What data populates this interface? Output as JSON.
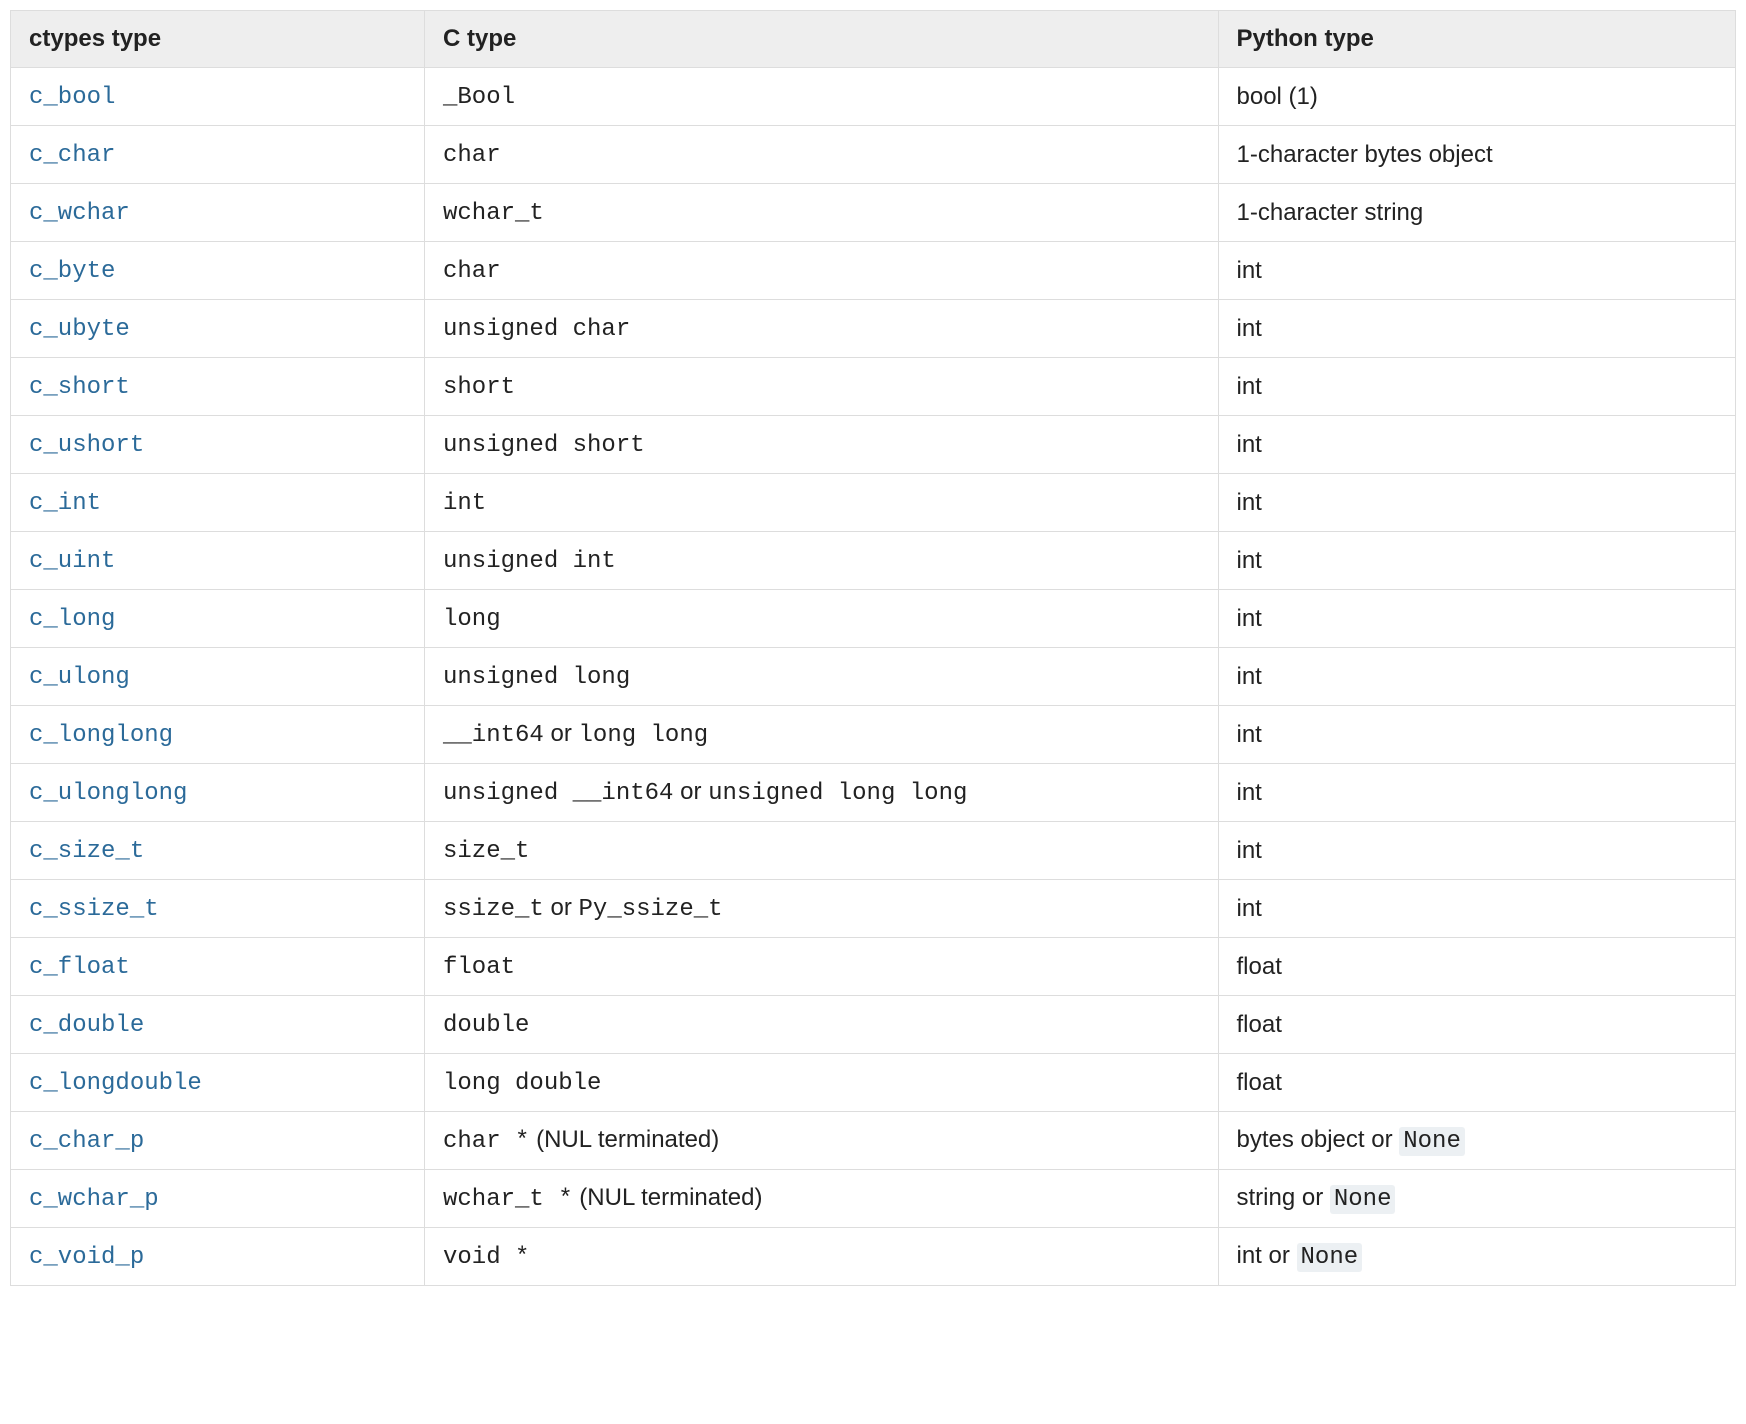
{
  "table": {
    "type": "table",
    "background_color": "#ffffff",
    "border_color": "#dddddd",
    "header_background": "#eeeeee",
    "link_color": "#2b6a99",
    "text_color": "#222222",
    "literal_background": "#ecf0f3",
    "body_font": "Lucida Grande, Lucida Sans Unicode, Geneva, Verdana, sans-serif",
    "mono_font": "Menlo, Monaco, Consolas, Courier New, monospace",
    "base_fontsize_pt": 18,
    "column_widths_pct": [
      24,
      46,
      30
    ],
    "columns": [
      "ctypes type",
      "C type",
      "Python type"
    ],
    "rows": [
      {
        "ctypes": "c_bool",
        "ctype": [
          {
            "t": "mono",
            "v": "_Bool"
          }
        ],
        "pytype": [
          {
            "t": "text",
            "v": "bool (1)"
          }
        ]
      },
      {
        "ctypes": "c_char",
        "ctype": [
          {
            "t": "mono",
            "v": "char"
          }
        ],
        "pytype": [
          {
            "t": "text",
            "v": "1-character bytes object"
          }
        ]
      },
      {
        "ctypes": "c_wchar",
        "ctype": [
          {
            "t": "mono",
            "v": "wchar_t"
          }
        ],
        "pytype": [
          {
            "t": "text",
            "v": "1-character string"
          }
        ]
      },
      {
        "ctypes": "c_byte",
        "ctype": [
          {
            "t": "mono",
            "v": "char"
          }
        ],
        "pytype": [
          {
            "t": "text",
            "v": "int"
          }
        ]
      },
      {
        "ctypes": "c_ubyte",
        "ctype": [
          {
            "t": "mono",
            "v": "unsigned char"
          }
        ],
        "pytype": [
          {
            "t": "text",
            "v": "int"
          }
        ]
      },
      {
        "ctypes": "c_short",
        "ctype": [
          {
            "t": "mono",
            "v": "short"
          }
        ],
        "pytype": [
          {
            "t": "text",
            "v": "int"
          }
        ]
      },
      {
        "ctypes": "c_ushort",
        "ctype": [
          {
            "t": "mono",
            "v": "unsigned short"
          }
        ],
        "pytype": [
          {
            "t": "text",
            "v": "int"
          }
        ]
      },
      {
        "ctypes": "c_int",
        "ctype": [
          {
            "t": "mono",
            "v": "int"
          }
        ],
        "pytype": [
          {
            "t": "text",
            "v": "int"
          }
        ]
      },
      {
        "ctypes": "c_uint",
        "ctype": [
          {
            "t": "mono",
            "v": "unsigned int"
          }
        ],
        "pytype": [
          {
            "t": "text",
            "v": "int"
          }
        ]
      },
      {
        "ctypes": "c_long",
        "ctype": [
          {
            "t": "mono",
            "v": "long"
          }
        ],
        "pytype": [
          {
            "t": "text",
            "v": "int"
          }
        ]
      },
      {
        "ctypes": "c_ulong",
        "ctype": [
          {
            "t": "mono",
            "v": "unsigned long"
          }
        ],
        "pytype": [
          {
            "t": "text",
            "v": "int"
          }
        ]
      },
      {
        "ctypes": "c_longlong",
        "ctype": [
          {
            "t": "mono",
            "v": "__int64"
          },
          {
            "t": "text",
            "v": " or "
          },
          {
            "t": "mono",
            "v": "long long"
          }
        ],
        "pytype": [
          {
            "t": "text",
            "v": "int"
          }
        ]
      },
      {
        "ctypes": "c_ulonglong",
        "ctype": [
          {
            "t": "mono",
            "v": "unsigned __int64"
          },
          {
            "t": "text",
            "v": " or "
          },
          {
            "t": "mono",
            "v": "unsigned long long"
          }
        ],
        "pytype": [
          {
            "t": "text",
            "v": "int"
          }
        ]
      },
      {
        "ctypes": "c_size_t",
        "ctype": [
          {
            "t": "mono",
            "v": "size_t"
          }
        ],
        "pytype": [
          {
            "t": "text",
            "v": "int"
          }
        ]
      },
      {
        "ctypes": "c_ssize_t",
        "ctype": [
          {
            "t": "mono",
            "v": "ssize_t"
          },
          {
            "t": "text",
            "v": " or "
          },
          {
            "t": "mono",
            "v": "Py_ssize_t"
          }
        ],
        "pytype": [
          {
            "t": "text",
            "v": "int"
          }
        ]
      },
      {
        "ctypes": "c_float",
        "ctype": [
          {
            "t": "mono",
            "v": "float"
          }
        ],
        "pytype": [
          {
            "t": "text",
            "v": "float"
          }
        ]
      },
      {
        "ctypes": "c_double",
        "ctype": [
          {
            "t": "mono",
            "v": "double"
          }
        ],
        "pytype": [
          {
            "t": "text",
            "v": "float"
          }
        ]
      },
      {
        "ctypes": "c_longdouble",
        "ctype": [
          {
            "t": "mono",
            "v": "long double"
          }
        ],
        "pytype": [
          {
            "t": "text",
            "v": "float"
          }
        ]
      },
      {
        "ctypes": "c_char_p",
        "ctype": [
          {
            "t": "mono",
            "v": "char *"
          },
          {
            "t": "text",
            "v": " (NUL terminated)"
          }
        ],
        "pytype": [
          {
            "t": "text",
            "v": "bytes object or "
          },
          {
            "t": "literal",
            "v": "None"
          }
        ]
      },
      {
        "ctypes": "c_wchar_p",
        "ctype": [
          {
            "t": "mono",
            "v": "wchar_t *"
          },
          {
            "t": "text",
            "v": " (NUL terminated)"
          }
        ],
        "pytype": [
          {
            "t": "text",
            "v": "string or "
          },
          {
            "t": "literal",
            "v": "None"
          }
        ]
      },
      {
        "ctypes": "c_void_p",
        "ctype": [
          {
            "t": "mono",
            "v": "void *"
          }
        ],
        "pytype": [
          {
            "t": "text",
            "v": "int or "
          },
          {
            "t": "literal",
            "v": "None"
          }
        ]
      }
    ]
  }
}
